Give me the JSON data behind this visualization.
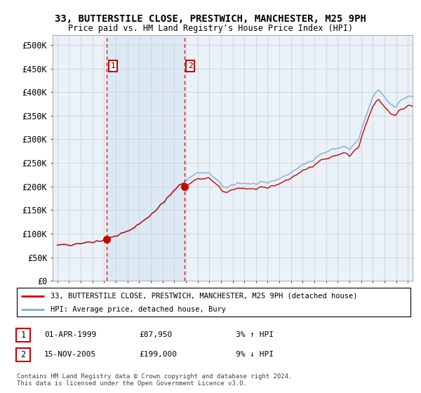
{
  "title": "33, BUTTERSTILE CLOSE, PRESTWICH, MANCHESTER, M25 9PH",
  "subtitle": "Price paid vs. HM Land Registry's House Price Index (HPI)",
  "legend_label_red": "33, BUTTERSTILE CLOSE, PRESTWICH, MANCHESTER, M25 9PH (detached house)",
  "legend_label_blue": "HPI: Average price, detached house, Bury",
  "annotation1_date": "01-APR-1999",
  "annotation1_price": "£87,950",
  "annotation1_hpi": "3% ↑ HPI",
  "annotation2_date": "15-NOV-2005",
  "annotation2_price": "£199,000",
  "annotation2_hpi": "9% ↓ HPI",
  "copyright": "Contains HM Land Registry data © Crown copyright and database right 2024.\nThis data is licensed under the Open Government Licence v3.0.",
  "ylim": [
    0,
    520000
  ],
  "yticks": [
    0,
    50000,
    100000,
    150000,
    200000,
    250000,
    300000,
    350000,
    400000,
    450000,
    500000
  ],
  "hpi_color": "#7bafd4",
  "price_color": "#cc0000",
  "shade_color": "#dce9f5",
  "bg_color": "#eaf1f8",
  "plot_bg": "#ffffff",
  "grid_color": "#cccccc",
  "marker1_x": 1999.25,
  "marker1_y": 87950,
  "marker2_x": 2005.88,
  "marker2_y": 199000,
  "vline1_x": 1999.25,
  "vline2_x": 2005.88,
  "xmin": 1994.6,
  "xmax": 2025.4
}
